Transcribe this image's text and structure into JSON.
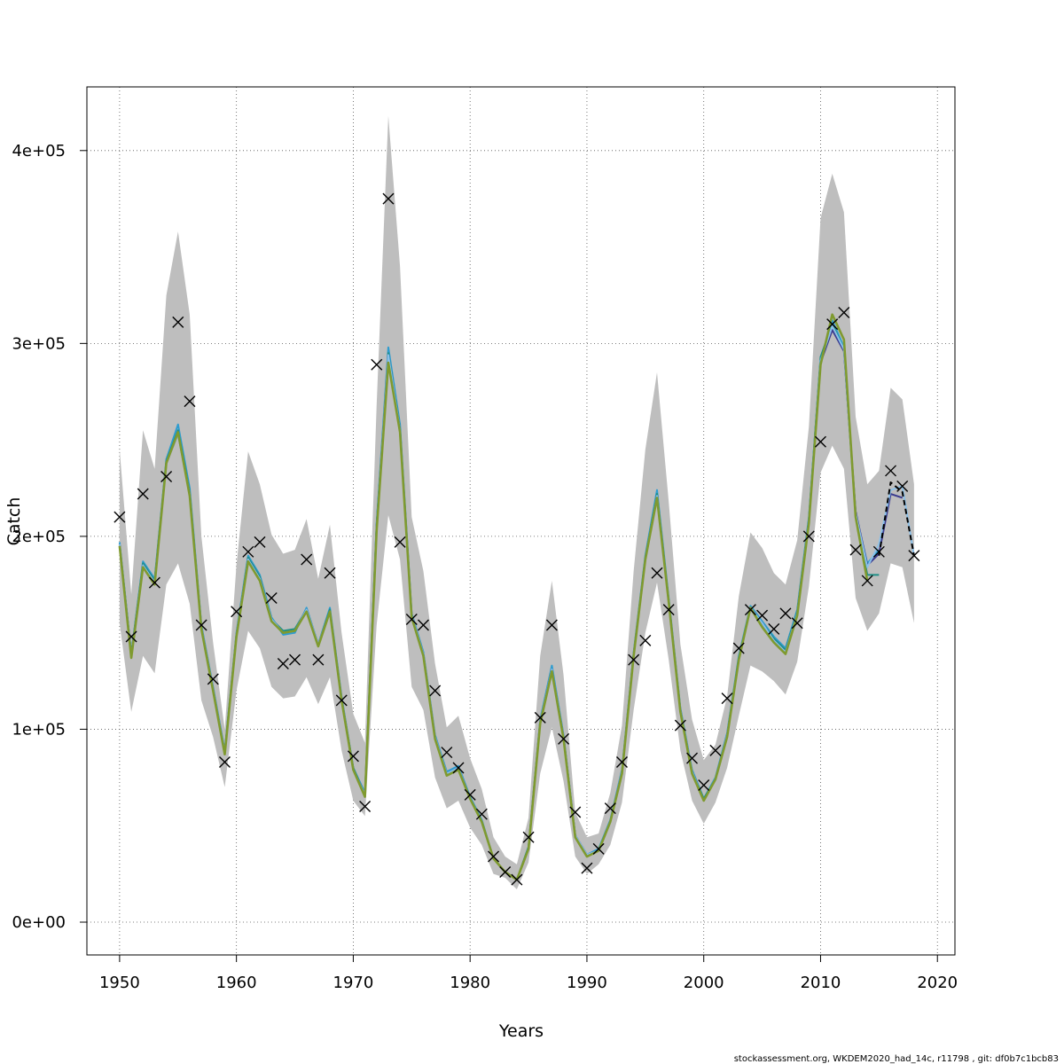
{
  "chart_data": {
    "type": "line",
    "title": "",
    "xlabel": "Years",
    "ylabel": "Catch",
    "xlim": [
      1947.2,
      2021.5
    ],
    "ylim": [
      -17000,
      433000
    ],
    "x_ticks": [
      1950,
      1960,
      1970,
      1980,
      1990,
      2000,
      2010,
      2020
    ],
    "y_ticks": [
      {
        "value": 0,
        "label": "0e+00"
      },
      {
        "value": 100000,
        "label": "1e+05"
      },
      {
        "value": 200000,
        "label": "2e+05"
      },
      {
        "value": 300000,
        "label": "3e+05"
      },
      {
        "value": 400000,
        "label": "4e+05"
      }
    ],
    "grid": true,
    "colors": {
      "band": "#bebebe",
      "main": "#7f9a2f",
      "retro1": "#2e9ccf",
      "retro2": "#1f8f86",
      "retro3": "#3b3b8f",
      "retro4": "#8cc0e8",
      "dashed": "#000000",
      "observed": "#000000",
      "grid": "#555555"
    },
    "band": {
      "years": [
        1950,
        1951,
        1952,
        1953,
        1954,
        1955,
        1956,
        1957,
        1958,
        1959,
        1960,
        1961,
        1962,
        1963,
        1964,
        1965,
        1966,
        1967,
        1968,
        1969,
        1970,
        1971,
        1972,
        1973,
        1974,
        1975,
        1976,
        1977,
        1978,
        1979,
        1980,
        1981,
        1982,
        1983,
        1984,
        1985,
        1986,
        1987,
        1988,
        1989,
        1990,
        1991,
        1992,
        1993,
        1994,
        1995,
        1996,
        1997,
        1998,
        1999,
        2000,
        2001,
        2002,
        2003,
        2004,
        2005,
        2006,
        2007,
        2008,
        2009,
        2010,
        2011,
        2012,
        2013,
        2014,
        2015,
        2016,
        2017,
        2018
      ],
      "upper": [
        245000,
        170000,
        255000,
        235000,
        325000,
        358000,
        315000,
        200000,
        145000,
        100000,
        185000,
        244000,
        227000,
        201000,
        191000,
        193000,
        209000,
        178000,
        206000,
        150000,
        108000,
        93000,
        268000,
        418000,
        340000,
        210000,
        182000,
        134000,
        101000,
        107000,
        85000,
        69000,
        44000,
        34000,
        30000,
        54000,
        138000,
        177000,
        128000,
        57000,
        44000,
        46000,
        67000,
        102000,
        182000,
        245000,
        285000,
        218000,
        144000,
        105000,
        84000,
        92000,
        117000,
        169000,
        202000,
        194000,
        181000,
        175000,
        198000,
        257000,
        365000,
        388000,
        368000,
        262000,
        227000,
        234000,
        277000,
        271000,
        227000
      ],
      "lower": [
        155000,
        109000,
        138000,
        129000,
        175000,
        186000,
        165000,
        115000,
        96000,
        70000,
        120000,
        151000,
        142000,
        122000,
        116000,
        117000,
        127000,
        113000,
        127000,
        89000,
        63000,
        55000,
        154000,
        211000,
        188000,
        122000,
        110000,
        75000,
        59000,
        63000,
        49000,
        40000,
        25000,
        23000,
        17000,
        31000,
        77000,
        101000,
        73000,
        34000,
        25000,
        30000,
        40000,
        62000,
        110000,
        150000,
        176000,
        136000,
        89000,
        63000,
        51000,
        62000,
        80000,
        107000,
        133000,
        130000,
        125000,
        118000,
        135000,
        174000,
        233000,
        247000,
        235000,
        168000,
        151000,
        160000,
        186000,
        184000,
        155000
      ]
    },
    "series": [
      {
        "key": "retro1",
        "values": [
          197000,
          139000,
          187000,
          178000,
          240000,
          258000,
          225000,
          154000,
          122000,
          89000,
          150000,
          190000,
          180000,
          158000,
          149000,
          150000,
          163000,
          144000,
          163000,
          117000,
          80000,
          67000,
          207000,
          298000,
          258000,
          160000,
          140000,
          97000,
          78000,
          81000,
          65000,
          53000,
          33000,
          26000,
          22000,
          39000,
          105000,
          133000,
          97000,
          45000,
          35000,
          38000,
          53000,
          79000,
          140000,
          190000,
          224000,
          168000,
          111000,
          79000,
          64000,
          75000,
          98000,
          138000,
          164000,
          156000,
          148000,
          142000,
          162000,
          210000,
          292000,
          312000,
          298000,
          212000,
          186000,
          193000
        ]
      },
      {
        "key": "retro2",
        "values": [
          196000,
          139000,
          186000,
          177000,
          239000,
          255000,
          223000,
          153000,
          121000,
          88000,
          149000,
          189000,
          179000,
          157000,
          151000,
          152000,
          162000,
          144000,
          162000,
          116000,
          80000,
          66000,
          206000,
          295000,
          256000,
          159000,
          139000,
          96000,
          77000,
          80000,
          64000,
          52000,
          33000,
          26000,
          22000,
          39000,
          104000,
          131000,
          96000,
          45000,
          35000,
          37000,
          52000,
          78000,
          139000,
          189000,
          222000,
          167000,
          110000,
          78000,
          64000,
          74000,
          97000,
          137000,
          163000,
          155000,
          147000,
          141000,
          161000,
          209000,
          293000,
          310000,
          297000,
          211000,
          180000,
          180000
        ]
      },
      {
        "key": "retro3",
        "values": [
          196000,
          138000,
          185000,
          176000,
          238000,
          253000,
          222000,
          153000,
          121000,
          88000,
          149000,
          188000,
          178000,
          157000,
          150000,
          151000,
          162000,
          144000,
          161000,
          116000,
          79000,
          66000,
          205000,
          294000,
          255000,
          159000,
          139000,
          96000,
          77000,
          80000,
          64000,
          52000,
          33000,
          26000,
          22000,
          38000,
          104000,
          131000,
          96000,
          45000,
          35000,
          37000,
          52000,
          78000,
          139000,
          188000,
          221000,
          166000,
          110000,
          78000,
          63000,
          74000,
          97000,
          136000,
          163000,
          155000,
          146000,
          140000,
          160000,
          208000,
          290000,
          307000,
          296000,
          213000,
          185000,
          191000,
          222000,
          220000
        ]
      },
      {
        "key": "retro4",
        "values": [
          196000,
          138000,
          185000,
          176000,
          238000,
          253000,
          222000,
          153000,
          121000,
          88000,
          149000,
          188000,
          178000,
          157000,
          150000,
          151000,
          162000,
          144000,
          161000,
          116000,
          79000,
          66000,
          205000,
          294000,
          255000,
          159000,
          139000,
          96000,
          77000,
          80000,
          64000,
          52000,
          33000,
          26000,
          22000,
          38000,
          104000,
          131000,
          96000,
          45000,
          35000,
          37000,
          52000,
          78000,
          139000,
          188000,
          221000,
          166000,
          110000,
          78000,
          63000,
          74000,
          97000,
          136000,
          163000,
          155000,
          146000,
          140000,
          160000,
          208000,
          291000,
          309000,
          297000,
          212000,
          184000,
          196000,
          224000,
          226000,
          190000
        ]
      },
      {
        "key": "main",
        "values": [
          195000,
          137000,
          184000,
          175000,
          238000,
          254000,
          221000,
          152000,
          120000,
          87000,
          148000,
          187000,
          177000,
          156000,
          150000,
          151000,
          161000,
          143000,
          161000,
          115000,
          79000,
          65000,
          203000,
          290000,
          254000,
          158000,
          138000,
          95000,
          76000,
          79000,
          64000,
          52000,
          33000,
          26000,
          22000,
          38000,
          103000,
          130000,
          95000,
          44000,
          34000,
          37000,
          52000,
          77000,
          138000,
          188000,
          220000,
          166000,
          109000,
          77000,
          63000,
          74000,
          96000,
          136000,
          163000,
          153000,
          145000,
          139000,
          159000,
          207000,
          289000,
          315000,
          302000,
          210000,
          177000
        ]
      },
      {
        "key": "dashed",
        "dashed": true,
        "years": [
          2015,
          2016,
          2017,
          2018
        ],
        "values": [
          190000,
          228000,
          223000,
          190000
        ]
      }
    ],
    "observed": {
      "years": [
        1950,
        1951,
        1952,
        1953,
        1954,
        1955,
        1956,
        1957,
        1958,
        1959,
        1960,
        1961,
        1962,
        1963,
        1964,
        1965,
        1966,
        1967,
        1968,
        1969,
        1970,
        1971,
        1972,
        1973,
        1974,
        1975,
        1976,
        1977,
        1978,
        1979,
        1980,
        1981,
        1982,
        1983,
        1984,
        1985,
        1986,
        1987,
        1988,
        1989,
        1990,
        1991,
        1992,
        1993,
        1994,
        1995,
        1996,
        1997,
        1998,
        1999,
        2000,
        2001,
        2002,
        2003,
        2004,
        2005,
        2006,
        2007,
        2008,
        2009,
        2010,
        2011,
        2012,
        2013,
        2014,
        2015,
        2016,
        2017,
        2018
      ],
      "values": [
        210000,
        148000,
        222000,
        176000,
        231000,
        311000,
        270000,
        154000,
        126000,
        83000,
        161000,
        192000,
        197000,
        168000,
        134000,
        136000,
        188000,
        136000,
        181000,
        115000,
        86000,
        60000,
        289000,
        375000,
        197000,
        157000,
        154000,
        120000,
        88000,
        80000,
        66000,
        56000,
        34000,
        26000,
        22000,
        44000,
        106000,
        154000,
        95000,
        57000,
        28000,
        38000,
        59000,
        83000,
        136000,
        146000,
        181000,
        162000,
        102000,
        85000,
        71000,
        89000,
        116000,
        142000,
        162000,
        159000,
        152000,
        160000,
        155000,
        200000,
        249000,
        310000,
        316000,
        193000,
        177000,
        192000,
        234000,
        226000,
        190000
      ]
    }
  },
  "footer": {
    "text": "stockassessment.org, WKDEM2020_had_14c, r11798 , git: df0b7c1bcb83"
  }
}
